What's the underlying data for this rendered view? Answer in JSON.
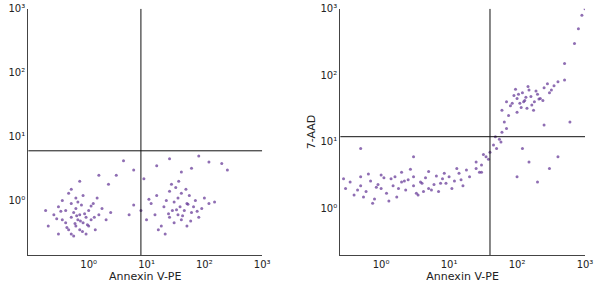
{
  "chart_data": [
    {
      "type": "scatter",
      "x_label": "Annexin V-PE",
      "log": true,
      "grid": false,
      "color": "#6a3d9a",
      "marker": "circle",
      "xlim": [
        0.09,
        1000
      ],
      "ylim": [
        0.14,
        1000
      ],
      "xticks": [
        {
          "value": 1,
          "label": "10⁰"
        },
        {
          "value": 10,
          "label": "10¹"
        },
        {
          "value": 100,
          "label": "10²"
        },
        {
          "value": 1000,
          "label": "10³"
        }
      ],
      "yticks": [
        {
          "value": 1,
          "label": "10⁰"
        },
        {
          "value": 10,
          "label": "10¹"
        },
        {
          "value": 100,
          "label": "10²"
        },
        {
          "value": 1000,
          "label": "10³"
        }
      ],
      "quadrant_x": 8,
      "quadrant_y": 6,
      "x": [
        0.2,
        0.25,
        0.3,
        0.3,
        0.35,
        0.4,
        0.4,
        0.45,
        0.5,
        0.5,
        0.5,
        0.55,
        0.6,
        0.6,
        0.6,
        0.65,
        0.7,
        0.7,
        0.75,
        0.8,
        0.8,
        0.9,
        1.0,
        1.0,
        1.1,
        1.2,
        1.3,
        1.5,
        1.7,
        2.0,
        0.35,
        0.45,
        0.55,
        0.65,
        0.85,
        0.95,
        1.4,
        0.28,
        0.42,
        0.72,
        0.18,
        0.5,
        0.62,
        0.9,
        1.1,
        2.4,
        0.33,
        0.58,
        0.78,
        1.25,
        8,
        10,
        12,
        14,
        15,
        18,
        20,
        22,
        25,
        25,
        28,
        30,
        30,
        32,
        35,
        35,
        38,
        40,
        40,
        45,
        50,
        50,
        55,
        60,
        65,
        70,
        80,
        90,
        100,
        120,
        5,
        6,
        16,
        24,
        27,
        33,
        42,
        48,
        58,
        75,
        11,
        21,
        36,
        52,
        150,
        3,
        6,
        9,
        15,
        25,
        40,
        60,
        80,
        120,
        200,
        0.7,
        1.5,
        2.2,
        4,
        250
      ],
      "values": [
        0.4,
        0.6,
        0.3,
        0.8,
        0.5,
        0.45,
        0.7,
        0.35,
        0.55,
        0.9,
        0.3,
        0.65,
        0.4,
        0.75,
        1.1,
        0.5,
        0.35,
        0.6,
        0.85,
        0.45,
        1.2,
        0.55,
        0.4,
        0.7,
        0.5,
        0.9,
        0.35,
        0.6,
        0.75,
        0.5,
        1.0,
        1.3,
        0.28,
        0.95,
        0.62,
        0.42,
        1.1,
        0.52,
        0.38,
        0.48,
        0.7,
        1.5,
        0.58,
        0.3,
        0.82,
        0.65,
        0.68,
        0.44,
        0.33,
        0.55,
        0.7,
        0.5,
        0.9,
        0.6,
        1.2,
        0.4,
        0.8,
        1.0,
        0.55,
        1.4,
        0.7,
        0.45,
        0.95,
        1.6,
        0.6,
        1.1,
        0.8,
        0.5,
        1.3,
        0.7,
        0.9,
        0.4,
        1.2,
        0.65,
        0.8,
        1.0,
        0.55,
        0.75,
        1.1,
        0.9,
        0.6,
        0.85,
        0.35,
        0.62,
        1.8,
        0.72,
        0.58,
        1.5,
        0.48,
        0.68,
        1.05,
        0.3,
        2.0,
        0.88,
        0.95,
        2.5,
        3,
        2.2,
        3.5,
        4.5,
        2.8,
        3.2,
        5,
        4,
        3.8,
        2,
        2.5,
        1.8,
        4.2,
        3
      ]
    },
    {
      "type": "scatter",
      "x_label": "Annexin V-PE",
      "y_label": "7-AAD",
      "log": true,
      "grid": false,
      "color": "#6a3d9a",
      "marker": "circle",
      "xlim": [
        0.25,
        1000
      ],
      "ylim": [
        0.2,
        1000
      ],
      "xticks": [
        {
          "value": 1,
          "label": "10⁰"
        },
        {
          "value": 10,
          "label": "10¹"
        },
        {
          "value": 100,
          "label": "10²"
        },
        {
          "value": 1000,
          "label": "10³"
        }
      ],
      "yticks": [
        {
          "value": 1,
          "label": "10⁰"
        },
        {
          "value": 10,
          "label": "10¹"
        },
        {
          "value": 100,
          "label": "10²"
        },
        {
          "value": 1000,
          "label": "10³"
        }
      ],
      "quadrant_x": 40,
      "quadrant_y": 12,
      "x": [
        0.3,
        0.35,
        0.4,
        0.5,
        0.5,
        0.6,
        0.7,
        0.8,
        0.9,
        1.0,
        1.0,
        1.2,
        1.4,
        1.5,
        1.7,
        2.0,
        2.0,
        2.3,
        2.5,
        3.0,
        3.0,
        3.5,
        4.0,
        4.5,
        5.0,
        5.0,
        6.0,
        7.0,
        8.0,
        9.0,
        10,
        12,
        14,
        16,
        18,
        20,
        0.45,
        0.65,
        0.85,
        1.1,
        1.3,
        1.8,
        2.7,
        3.3,
        3.8,
        5.5,
        6.5,
        7.5,
        11,
        13,
        0.28,
        0.55,
        1.6,
        2.2,
        4.2,
        8.5,
        15,
        25,
        30,
        0.75,
        25,
        30,
        35,
        40,
        45,
        50,
        55,
        60,
        70,
        28,
        38,
        48,
        65,
        32,
        58,
        60,
        70,
        80,
        90,
        100,
        100,
        110,
        120,
        130,
        140,
        150,
        160,
        180,
        200,
        220,
        250,
        300,
        350,
        400,
        85,
        95,
        115,
        135,
        165,
        190,
        240,
        280,
        75,
        105,
        125,
        145,
        175,
        210,
        320,
        500,
        100,
        150,
        200,
        300,
        400,
        120,
        250,
        600,
        500,
        700,
        800,
        900,
        1000,
        0.5,
        3
      ],
      "values": [
        2.0,
        2.5,
        1.6,
        2.2,
        3.0,
        1.8,
        2.6,
        1.4,
        2.3,
        2.0,
        3.2,
        1.7,
        2.8,
        2.2,
        1.5,
        2.5,
        3.5,
        1.9,
        2.7,
        2.2,
        3.0,
        1.6,
        2.4,
        2.9,
        2.0,
        3.6,
        2.3,
        1.8,
        2.8,
        2.4,
        3.0,
        2.6,
        3.4,
        2.2,
        3.8,
        3.0,
        1.9,
        3.3,
        2.1,
        2.9,
        1.3,
        2.0,
        3.9,
        1.7,
        2.5,
        1.9,
        3.1,
        2.4,
        2.0,
        4.0,
        2.8,
        1.5,
        3.0,
        2.6,
        1.8,
        3.4,
        2.7,
        4.0,
        3.5,
        1.2,
        5,
        4.5,
        6,
        7,
        9,
        8,
        11,
        14,
        16,
        3.5,
        5.5,
        12,
        20,
        6.5,
        10,
        30,
        40,
        35,
        50,
        28,
        45,
        38,
        55,
        42,
        32,
        60,
        48,
        40,
        52,
        45,
        65,
        55,
        70,
        80,
        38,
        62,
        33,
        47,
        36,
        58,
        42,
        75,
        25,
        52,
        40,
        68,
        30,
        44,
        60,
        85,
        3,
        5,
        2.5,
        4,
        6,
        8,
        18,
        20,
        150,
        300,
        500,
        800,
        1000,
        8,
        6
      ]
    }
  ]
}
